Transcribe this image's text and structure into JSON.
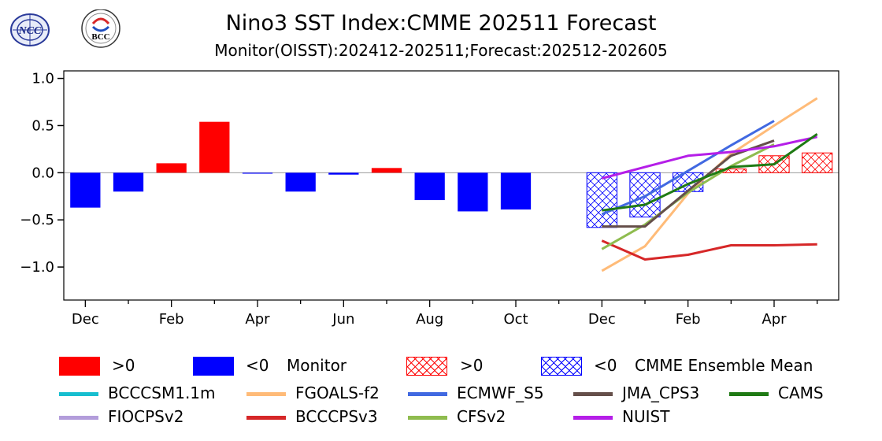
{
  "header": {
    "title": "Nino3 SST Index:CMME 202511 Forecast",
    "subtitle": "Monitor(OISST):202412-202511;Forecast:202512-202605",
    "logo_left_text": "NCC",
    "logo_right_text": "BCC"
  },
  "colors": {
    "positive": "#ff0000",
    "negative": "#0000ff",
    "zero_line": "#999999"
  },
  "chart_data": {
    "type": "bar",
    "title": "Nino3 SST Index:CMME 202511 Forecast",
    "subtitle": "Monitor(OISST):202412-202511;Forecast:202512-202605",
    "xlabel": "",
    "ylabel": "",
    "ylim": [
      -1.35,
      1.08
    ],
    "yticks": [
      1.0,
      0.5,
      0.0,
      -0.5,
      -1.0
    ],
    "ytick_labels": [
      "1.0",
      "0.5",
      "0.0",
      "−0.5",
      "−1.0"
    ],
    "xtick_labels": [
      "Dec",
      "Feb",
      "Apr",
      "Jun",
      "Aug",
      "Oct",
      "Dec",
      "Feb",
      "Apr"
    ],
    "xtick_label_slots": [
      0,
      2,
      4,
      6,
      8,
      10,
      12,
      14,
      16
    ],
    "n_slots": 18,
    "monitor": {
      "name": "Monitor",
      "months": [
        "202412",
        "202501",
        "202502",
        "202503",
        "202504",
        "202505",
        "202506",
        "202507",
        "202508",
        "202509",
        "202510",
        "202511"
      ],
      "values": [
        -0.37,
        -0.2,
        0.1,
        0.54,
        -0.01,
        -0.2,
        -0.02,
        0.05,
        -0.29,
        -0.41,
        -0.39,
        null
      ]
    },
    "ensemble_mean": {
      "name": "CMME Ensemble Mean",
      "months": [
        "202512",
        "202601",
        "202602",
        "202603",
        "202604",
        "202605"
      ],
      "values": [
        -0.58,
        -0.47,
        -0.2,
        0.04,
        0.18,
        0.21
      ]
    },
    "series": [
      {
        "name": "BCCCSM1.1m",
        "color": "#17becf",
        "values": [
          null,
          null,
          null,
          null,
          null,
          null
        ]
      },
      {
        "name": "FIOCPSv2",
        "color": "#b39ddb",
        "values": [
          null,
          null,
          null,
          null,
          null,
          null
        ]
      },
      {
        "name": "FGOALS-f2",
        "color": "#ffbb78",
        "values": [
          -1.04,
          -0.78,
          -0.22,
          0.2,
          0.5,
          0.79
        ]
      },
      {
        "name": "BCCCPSv3",
        "color": "#d62728",
        "values": [
          -0.72,
          -0.92,
          -0.87,
          -0.77,
          -0.77,
          -0.76
        ]
      },
      {
        "name": "ECMWF_S5",
        "color": "#4169e1",
        "values": [
          -0.44,
          -0.25,
          0.02,
          0.29,
          0.55,
          null
        ]
      },
      {
        "name": "CFSv2",
        "color": "#8fbc4f",
        "values": [
          -0.81,
          -0.55,
          -0.21,
          0.07,
          0.3,
          null
        ]
      },
      {
        "name": "JMA_CPS3",
        "color": "#654f4a",
        "values": [
          -0.57,
          -0.57,
          -0.19,
          0.18,
          0.34,
          null
        ]
      },
      {
        "name": "NUIST",
        "color": "#b51ee8",
        "values": [
          -0.06,
          0.06,
          0.18,
          0.22,
          0.28,
          0.38
        ]
      },
      {
        "name": "CAMS",
        "color": "#1f7a14",
        "values": [
          -0.4,
          -0.34,
          -0.12,
          0.06,
          0.09,
          0.41
        ]
      }
    ]
  },
  "legend": {
    "pos_label": ">0",
    "neg_label": "<0",
    "monitor_label": "Monitor",
    "ens_pos_label": ">0",
    "ens_neg_label": "<0",
    "ens_label": "CMME Ensemble Mean",
    "models": [
      "BCCCSM1.1m",
      "FGOALS-f2",
      "ECMWF_S5",
      "JMA_CPS3",
      "CAMS",
      "FIOCPSv2",
      "BCCCPSv3",
      "CFSv2",
      "NUIST"
    ]
  }
}
